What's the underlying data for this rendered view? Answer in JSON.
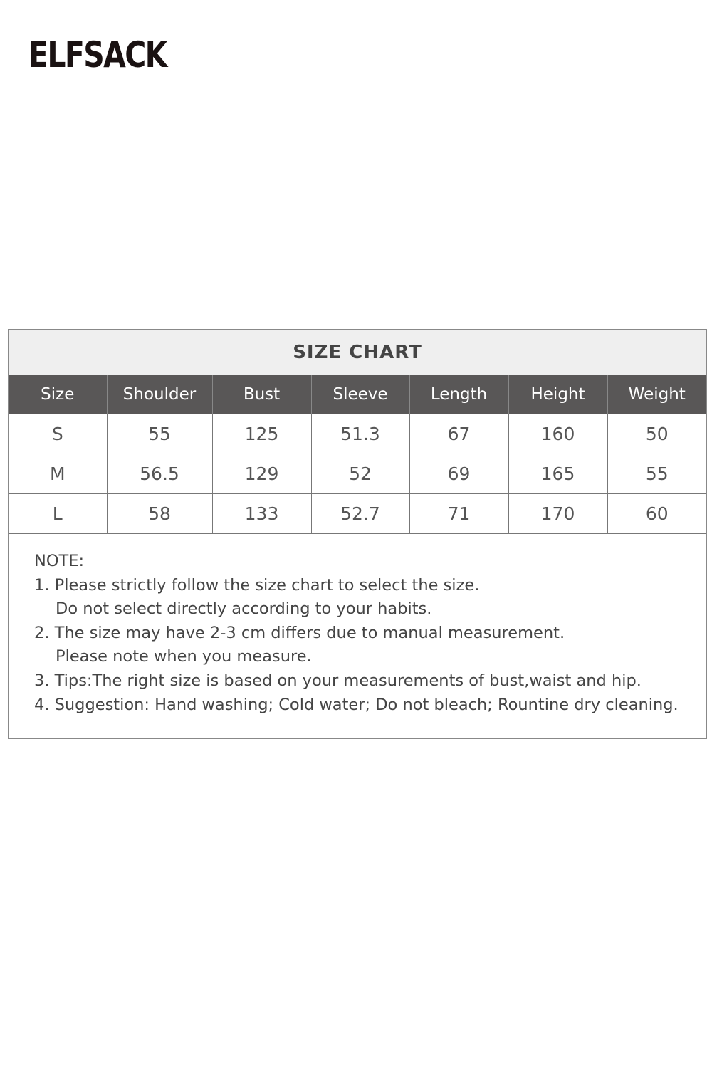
{
  "brand": {
    "logo_text": "ELFSACK"
  },
  "size_chart": {
    "title": "SIZE CHART",
    "columns": [
      "Size",
      "Shoulder",
      "Bust",
      "Sleeve",
      "Length",
      "Height",
      "Weight"
    ],
    "rows": [
      [
        "S",
        "55",
        "125",
        "51.3",
        "67",
        "160",
        "50"
      ],
      [
        "M",
        "56.5",
        "129",
        "52",
        "69",
        "165",
        "55"
      ],
      [
        "L",
        "58",
        "133",
        "52.7",
        "71",
        "170",
        "60"
      ]
    ]
  },
  "notes": {
    "heading": "NOTE:",
    "lines": [
      "1. Please strictly follow the size chart to select the size.",
      "Do not select directly according to your habits.",
      "2. The size may have 2-3 cm differs due to manual measurement.",
      "Please note when you measure.",
      "3. Tips:The right size is based on your measurements of bust,waist and hip.",
      "4. Suggestion: Hand washing; Cold water; Do not bleach; Rountine dry cleaning."
    ]
  }
}
